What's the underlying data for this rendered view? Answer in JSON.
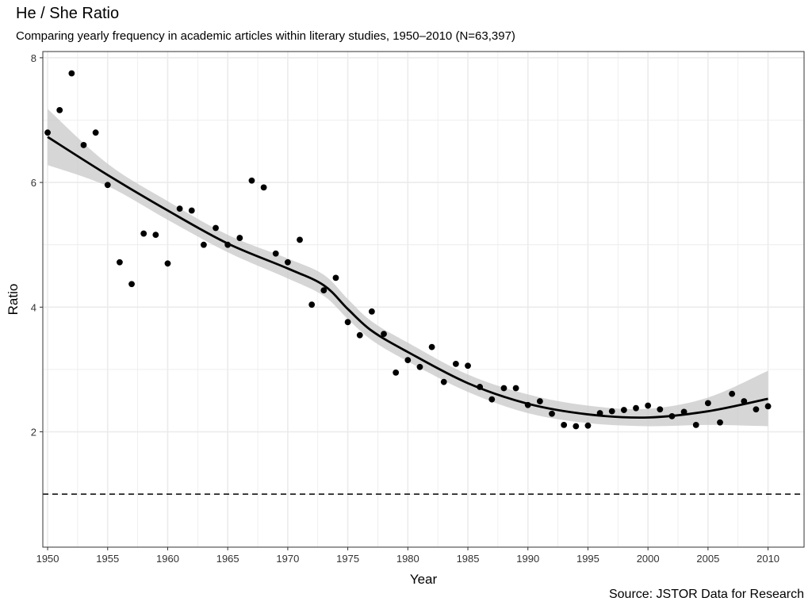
{
  "chart_data": {
    "type": "scatter",
    "title": "He / She Ratio",
    "subtitle": "Comparing yearly frequency in academic articles within literary studies, 1950–2010 (N=63,397)",
    "caption": "Source: JSTOR Data for Research",
    "xlabel": "Year",
    "ylabel": "Ratio",
    "xlim": [
      1949.6,
      2013
    ],
    "ylim": [
      0.15,
      8.1
    ],
    "x_ticks": [
      1950,
      1955,
      1960,
      1965,
      1970,
      1975,
      1980,
      1985,
      1990,
      1995,
      2000,
      2005,
      2010
    ],
    "y_ticks": [
      2,
      4,
      6,
      8
    ],
    "grid": true,
    "reference_line": 1,
    "colors": {
      "points": "#000000",
      "smooth": "#000000",
      "ribbon": "#c8c8c8",
      "grid": "#ebebeb",
      "panel_border": "#333333"
    },
    "points": [
      [
        1950,
        6.8
      ],
      [
        1951,
        7.16
      ],
      [
        1952,
        7.75
      ],
      [
        1953,
        6.6
      ],
      [
        1954,
        6.8
      ],
      [
        1955,
        5.96
      ],
      [
        1956,
        4.72
      ],
      [
        1957,
        4.37
      ],
      [
        1958,
        5.18
      ],
      [
        1959,
        5.16
      ],
      [
        1960,
        4.7
      ],
      [
        1961,
        5.58
      ],
      [
        1962,
        5.55
      ],
      [
        1963,
        5.0
      ],
      [
        1964,
        5.27
      ],
      [
        1965,
        5.0
      ],
      [
        1966,
        5.11
      ],
      [
        1967,
        6.03
      ],
      [
        1968,
        5.92
      ],
      [
        1969,
        4.86
      ],
      [
        1970,
        4.72
      ],
      [
        1971,
        5.08
      ],
      [
        1972,
        4.04
      ],
      [
        1973,
        4.27
      ],
      [
        1974,
        4.47
      ],
      [
        1975,
        3.76
      ],
      [
        1976,
        3.55
      ],
      [
        1977,
        3.93
      ],
      [
        1978,
        3.57
      ],
      [
        1979,
        2.95
      ],
      [
        1980,
        3.15
      ],
      [
        1981,
        3.04
      ],
      [
        1982,
        3.36
      ],
      [
        1983,
        2.8
      ],
      [
        1984,
        3.09
      ],
      [
        1985,
        3.06
      ],
      [
        1986,
        2.72
      ],
      [
        1987,
        2.52
      ],
      [
        1988,
        2.7
      ],
      [
        1989,
        2.7
      ],
      [
        1990,
        2.43
      ],
      [
        1991,
        2.49
      ],
      [
        1992,
        2.29
      ],
      [
        1993,
        2.11
      ],
      [
        1994,
        2.09
      ],
      [
        1995,
        2.1
      ],
      [
        1996,
        2.3
      ],
      [
        1997,
        2.33
      ],
      [
        1998,
        2.35
      ],
      [
        1999,
        2.38
      ],
      [
        2000,
        2.42
      ],
      [
        2001,
        2.36
      ],
      [
        2002,
        2.25
      ],
      [
        2003,
        2.32
      ],
      [
        2004,
        2.11
      ],
      [
        2005,
        2.46
      ],
      [
        2006,
        2.15
      ],
      [
        2007,
        2.61
      ],
      [
        2008,
        2.49
      ],
      [
        2009,
        2.36
      ],
      [
        2010,
        2.41
      ]
    ],
    "smooth": {
      "x": [
        1950,
        1955,
        1960,
        1965,
        1970,
        1973,
        1975,
        1977,
        1980,
        1985,
        1990,
        1995,
        2000,
        2005,
        2010
      ],
      "y": [
        6.73,
        6.12,
        5.55,
        5.02,
        4.62,
        4.35,
        3.97,
        3.62,
        3.28,
        2.78,
        2.45,
        2.28,
        2.23,
        2.33,
        2.53
      ],
      "upper": [
        7.18,
        6.3,
        5.7,
        5.16,
        4.78,
        4.52,
        4.13,
        3.77,
        3.43,
        2.92,
        2.6,
        2.42,
        2.37,
        2.55,
        2.98
      ],
      "lower": [
        6.28,
        5.94,
        5.4,
        4.88,
        4.46,
        4.18,
        3.81,
        3.47,
        3.13,
        2.64,
        2.3,
        2.14,
        2.09,
        2.11,
        2.09
      ]
    }
  }
}
